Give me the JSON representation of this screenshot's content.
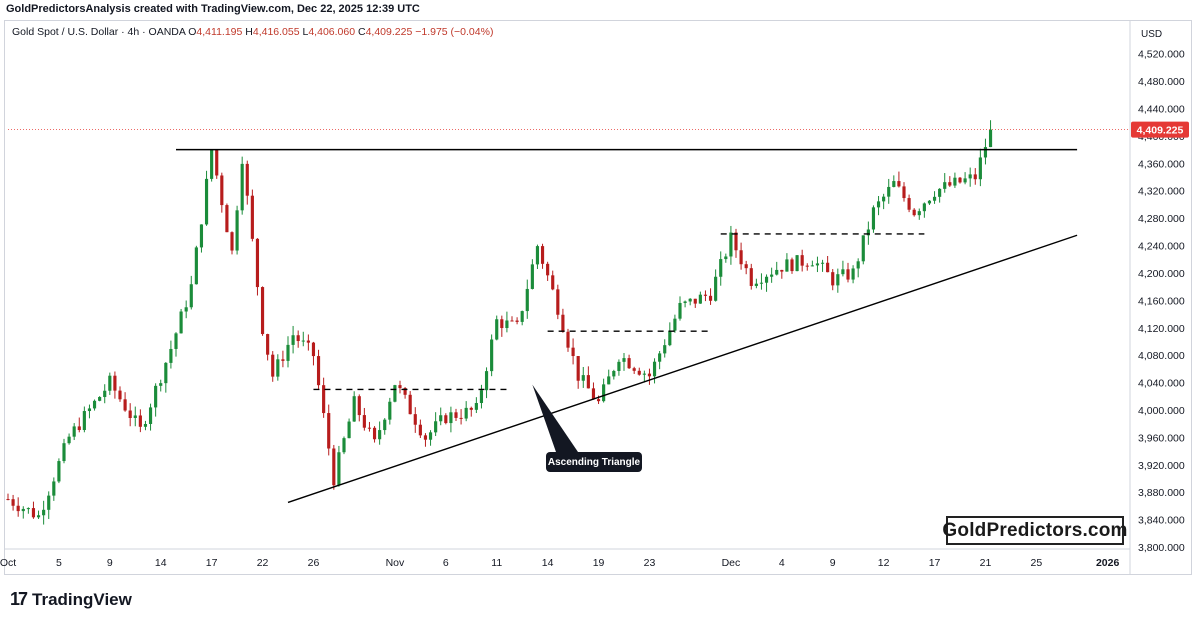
{
  "header": {
    "attribution": "GoldPredictorsAnalysis created with TradingView.com, Dec 22, 2025 12:39 UTC"
  },
  "legend": {
    "symbol": "Gold Spot / U.S. Dollar · 4h · OANDA",
    "open_label": "O",
    "open": "4,411.195",
    "high_label": "H",
    "high": "4,416.055",
    "low_label": "L",
    "low": "4,406.060",
    "close_label": "C",
    "close": "4,409.225",
    "change": "−1.975 (−0.04%)"
  },
  "watermark": "GoldPredictors.com",
  "branding": {
    "logo_mark": "17",
    "name": "TradingView"
  },
  "colors": {
    "up": "#26a69a",
    "down": "#ef5350",
    "up_candle": "#1b8c3a",
    "down_candle": "#b71c1c",
    "price_tag": "#e53935",
    "text": "#131722"
  },
  "chart_data": {
    "type": "candlestick",
    "currency": "USD",
    "last_price_label": "4,409.225",
    "last_price": 4409.225,
    "ylim": [
      3800,
      4540
    ],
    "y_ticks": [
      3800,
      3840,
      3880,
      3920,
      3960,
      4000,
      4040,
      4080,
      4120,
      4160,
      4200,
      4240,
      4280,
      4320,
      4360,
      4400,
      4440,
      4480,
      4520
    ],
    "y_tick_labels": [
      "3,800.000",
      "3,840.000",
      "3,880.000",
      "3,920.000",
      "3,960.000",
      "4,000.000",
      "4,040.000",
      "4,080.000",
      "4,120.000",
      "4,160.000",
      "4,200.000",
      "4,240.000",
      "4,280.000",
      "4,320.000",
      "4,360.000",
      "4,400.000",
      "4,440.000",
      "4,480.000",
      "4,520.000"
    ],
    "x_tick_labels": [
      "Oct",
      "5",
      "9",
      "14",
      "17",
      "22",
      "26",
      "Nov",
      "6",
      "11",
      "14",
      "19",
      "23",
      "Dec",
      "4",
      "9",
      "12",
      "17",
      "21",
      "25",
      "2026"
    ],
    "x_tick_index": [
      0,
      10,
      20,
      30,
      40,
      50,
      60,
      76,
      86,
      96,
      106,
      116,
      126,
      142,
      152,
      162,
      172,
      182,
      192,
      202,
      216
    ],
    "price_path": [
      [
        0,
        3870
      ],
      [
        6,
        3845
      ],
      [
        12,
        3960
      ],
      [
        20,
        4040
      ],
      [
        26,
        3970
      ],
      [
        32,
        4090
      ],
      [
        36,
        4180
      ],
      [
        40,
        4380
      ],
      [
        44,
        4230
      ],
      [
        46,
        4370
      ],
      [
        50,
        4120
      ],
      [
        52,
        4050
      ],
      [
        56,
        4110
      ],
      [
        60,
        4080
      ],
      [
        64,
        3900
      ],
      [
        68,
        4010
      ],
      [
        72,
        3950
      ],
      [
        76,
        4040
      ],
      [
        82,
        3960
      ],
      [
        86,
        3990
      ],
      [
        92,
        4000
      ],
      [
        96,
        4130
      ],
      [
        100,
        4120
      ],
      [
        104,
        4240
      ],
      [
        108,
        4150
      ],
      [
        112,
        4050
      ],
      [
        116,
        4010
      ],
      [
        120,
        4080
      ],
      [
        126,
        4050
      ],
      [
        132,
        4150
      ],
      [
        138,
        4170
      ],
      [
        142,
        4250
      ],
      [
        146,
        4190
      ],
      [
        152,
        4210
      ],
      [
        158,
        4220
      ],
      [
        162,
        4190
      ],
      [
        166,
        4200
      ],
      [
        170,
        4290
      ],
      [
        174,
        4330
      ],
      [
        178,
        4290
      ],
      [
        182,
        4320
      ],
      [
        186,
        4330
      ],
      [
        190,
        4340
      ],
      [
        193,
        4409
      ]
    ],
    "resistance_line": {
      "price": 4380,
      "from_index": 33,
      "to_index": 210
    },
    "support_trendline": {
      "from": [
        55,
        3865
      ],
      "to": [
        210,
        4255
      ]
    },
    "dashed_levels": [
      {
        "price": 4030,
        "from_index": 60,
        "to_index": 98
      },
      {
        "price": 4115,
        "from_index": 106,
        "to_index": 138
      },
      {
        "price": 4257,
        "from_index": 140,
        "to_index": 180
      }
    ],
    "annotation": {
      "text": "Ascending Triangle",
      "index": 103,
      "price": 3950
    }
  }
}
